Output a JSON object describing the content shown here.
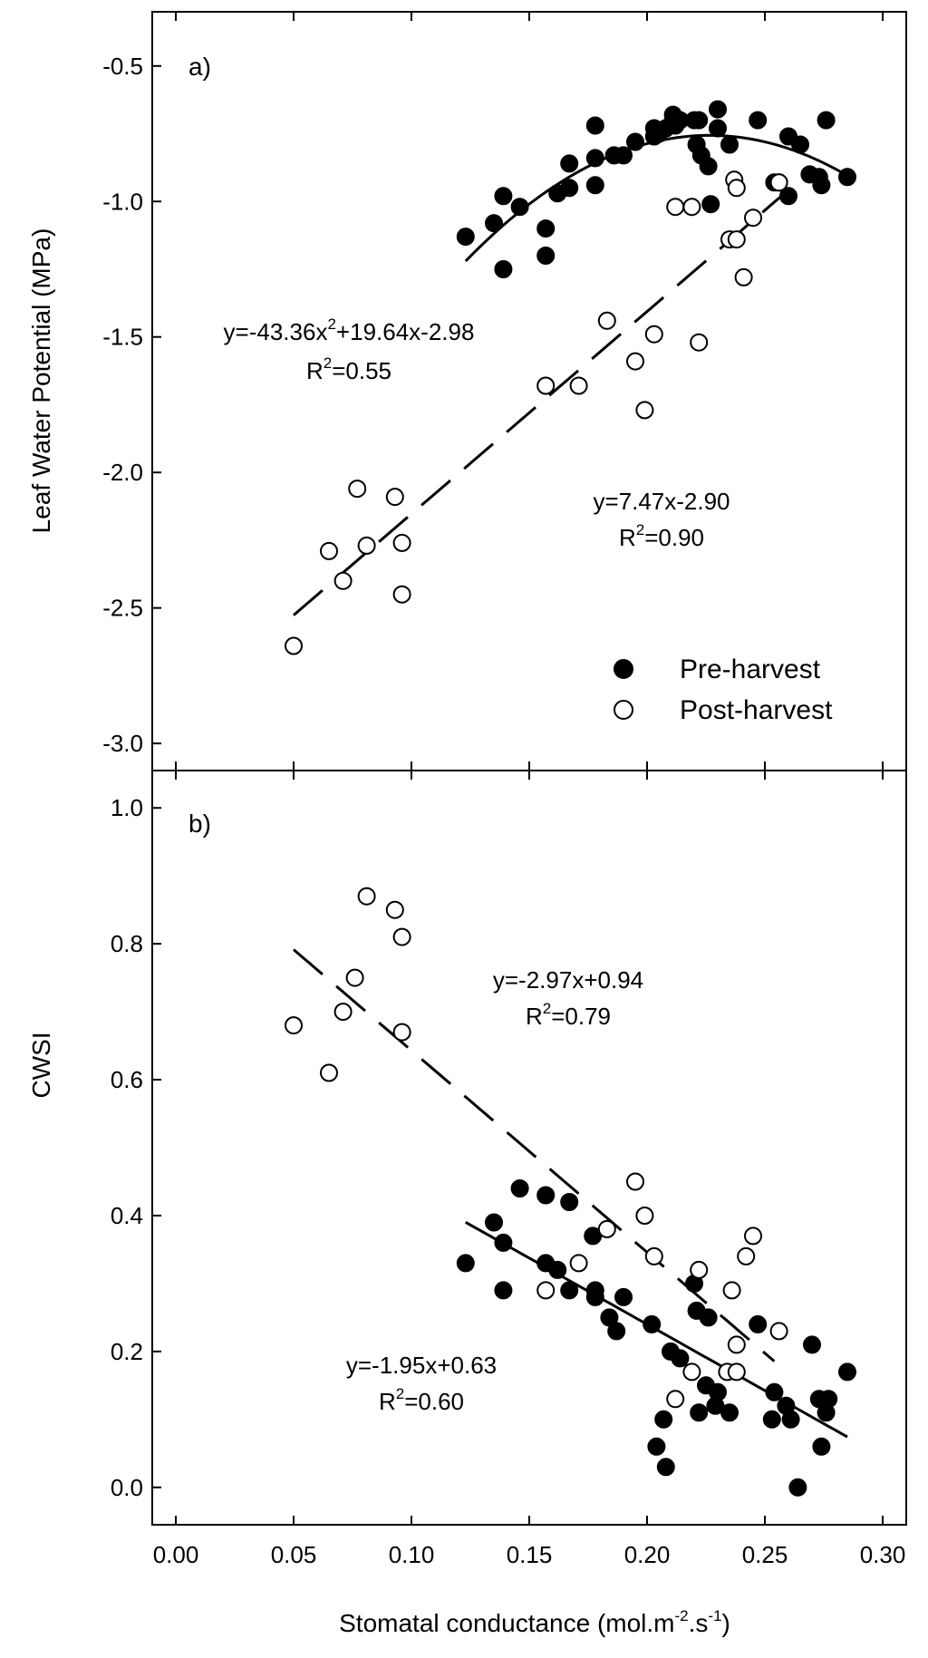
{
  "chart_data": [
    {
      "type": "scatter",
      "panel_label": "a)",
      "ylabel": "Leaf Water Potential (MPa)",
      "xlabel": "",
      "xlim": [
        -0.01,
        0.31
      ],
      "ylim": [
        -3.1,
        -0.3
      ],
      "y_reversed": true,
      "yticks": [
        -0.5,
        -1.0,
        -1.5,
        -2.0,
        -2.5,
        -3.0
      ],
      "ytick_labels": [
        "-0.5",
        "-1.0",
        "-1.5",
        "-2.0",
        "-2.5",
        "-3.0"
      ],
      "legend": {
        "position": "bottom-right",
        "entries": [
          {
            "label": "Pre-harvest",
            "marker": "filled-circle"
          },
          {
            "label": "Post-harvest",
            "marker": "open-circle"
          }
        ]
      },
      "series": [
        {
          "name": "Pre-harvest",
          "marker": "filled",
          "points": [
            [
              0.123,
              -1.13
            ],
            [
              0.135,
              -1.08
            ],
            [
              0.139,
              -0.98
            ],
            [
              0.139,
              -1.25
            ],
            [
              0.146,
              -1.02
            ],
            [
              0.157,
              -1.1
            ],
            [
              0.157,
              -1.2
            ],
            [
              0.162,
              -0.97
            ],
            [
              0.167,
              -0.95
            ],
            [
              0.167,
              -0.86
            ],
            [
              0.178,
              -0.94
            ],
            [
              0.178,
              -0.84
            ],
            [
              0.178,
              -0.72
            ],
            [
              0.186,
              -0.83
            ],
            [
              0.19,
              -0.83
            ],
            [
              0.195,
              -0.78
            ],
            [
              0.203,
              -0.76
            ],
            [
              0.203,
              -0.73
            ],
            [
              0.205,
              -0.75
            ],
            [
              0.208,
              -0.73
            ],
            [
              0.211,
              -0.68
            ],
            [
              0.211,
              -0.7
            ],
            [
              0.212,
              -0.72
            ],
            [
              0.214,
              -0.7
            ],
            [
              0.22,
              -0.7
            ],
            [
              0.221,
              -0.79
            ],
            [
              0.222,
              -0.7
            ],
            [
              0.223,
              -0.83
            ],
            [
              0.226,
              -0.87
            ],
            [
              0.227,
              -1.01
            ],
            [
              0.23,
              -0.66
            ],
            [
              0.23,
              -0.73
            ],
            [
              0.235,
              -0.79
            ],
            [
              0.247,
              -0.7
            ],
            [
              0.254,
              -0.93
            ],
            [
              0.256,
              -0.93
            ],
            [
              0.26,
              -0.98
            ],
            [
              0.26,
              -0.76
            ],
            [
              0.265,
              -0.79
            ],
            [
              0.269,
              -0.9
            ],
            [
              0.273,
              -0.91
            ],
            [
              0.274,
              -0.94
            ],
            [
              0.276,
              -0.7
            ],
            [
              0.285,
              -0.91
            ]
          ]
        },
        {
          "name": "Post-harvest",
          "marker": "open",
          "points": [
            [
              0.05,
              -2.64
            ],
            [
              0.065,
              -2.29
            ],
            [
              0.071,
              -2.4
            ],
            [
              0.077,
              -2.06
            ],
            [
              0.081,
              -2.27
            ],
            [
              0.093,
              -2.09
            ],
            [
              0.096,
              -2.26
            ],
            [
              0.096,
              -2.45
            ],
            [
              0.157,
              -1.68
            ],
            [
              0.171,
              -1.68
            ],
            [
              0.183,
              -1.44
            ],
            [
              0.195,
              -1.59
            ],
            [
              0.199,
              -1.77
            ],
            [
              0.203,
              -1.49
            ],
            [
              0.212,
              -1.02
            ],
            [
              0.219,
              -1.02
            ],
            [
              0.222,
              -1.52
            ],
            [
              0.235,
              -1.14
            ],
            [
              0.237,
              -0.92
            ],
            [
              0.238,
              -0.95
            ],
            [
              0.238,
              -1.14
            ],
            [
              0.241,
              -1.28
            ],
            [
              0.245,
              -1.06
            ],
            [
              0.256,
              -0.93
            ]
          ]
        }
      ],
      "fits": [
        {
          "name": "Pre-harvest fit",
          "type": "quadratic",
          "coef": [
            -43.36,
            19.64,
            -2.98
          ],
          "x_range": [
            0.123,
            0.285
          ],
          "style": "solid",
          "equation": "y=-43.36x",
          "equation_sup": "2",
          "equation_rest": "+19.64x-2.98",
          "r2_prefix": "R",
          "r2_sup": "2",
          "r2_rest": "=0.55"
        },
        {
          "name": "Post-harvest fit",
          "type": "linear",
          "coef": [
            7.47,
            -2.9
          ],
          "x_range": [
            0.05,
            0.257
          ],
          "style": "dashed",
          "equation": "y=7.47x-2.90",
          "r2_prefix": "R",
          "r2_sup": "2",
          "r2_rest": "=0.90"
        }
      ]
    },
    {
      "type": "scatter",
      "panel_label": "b)",
      "ylabel": "CWSI",
      "xlabel_main": "Stomatal conductance (mol.m",
      "xlabel_sup1": "-2",
      "xlabel_mid": ".s",
      "xlabel_sup2": "-1",
      "xlabel_end": ")",
      "xlim": [
        -0.01,
        0.31
      ],
      "ylim": [
        -0.055,
        1.055
      ],
      "xticks": [
        0.0,
        0.05,
        0.1,
        0.15,
        0.2,
        0.25,
        0.3
      ],
      "xtick_labels": [
        "0.00",
        "0.05",
        "0.10",
        "0.15",
        "0.20",
        "0.25",
        "0.30"
      ],
      "yticks": [
        0.0,
        0.2,
        0.4,
        0.6,
        0.8,
        1.0
      ],
      "ytick_labels": [
        "0.0",
        "0.2",
        "0.4",
        "0.6",
        "0.8",
        "1.0"
      ],
      "series": [
        {
          "name": "Pre-harvest",
          "marker": "filled",
          "points": [
            [
              0.123,
              0.33
            ],
            [
              0.135,
              0.39
            ],
            [
              0.139,
              0.36
            ],
            [
              0.139,
              0.29
            ],
            [
              0.146,
              0.44
            ],
            [
              0.157,
              0.43
            ],
            [
              0.157,
              0.33
            ],
            [
              0.162,
              0.32
            ],
            [
              0.167,
              0.42
            ],
            [
              0.167,
              0.29
            ],
            [
              0.177,
              0.37
            ],
            [
              0.178,
              0.29
            ],
            [
              0.178,
              0.28
            ],
            [
              0.184,
              0.25
            ],
            [
              0.187,
              0.23
            ],
            [
              0.19,
              0.28
            ],
            [
              0.202,
              0.24
            ],
            [
              0.204,
              0.06
            ],
            [
              0.207,
              0.1
            ],
            [
              0.208,
              0.03
            ],
            [
              0.21,
              0.2
            ],
            [
              0.214,
              0.19
            ],
            [
              0.22,
              0.3
            ],
            [
              0.221,
              0.26
            ],
            [
              0.222,
              0.11
            ],
            [
              0.225,
              0.15
            ],
            [
              0.226,
              0.25
            ],
            [
              0.229,
              0.12
            ],
            [
              0.23,
              0.14
            ],
            [
              0.235,
              0.11
            ],
            [
              0.247,
              0.24
            ],
            [
              0.253,
              0.1
            ],
            [
              0.254,
              0.14
            ],
            [
              0.259,
              0.12
            ],
            [
              0.261,
              0.1
            ],
            [
              0.264,
              0.0
            ],
            [
              0.27,
              0.21
            ],
            [
              0.273,
              0.13
            ],
            [
              0.274,
              0.06
            ],
            [
              0.276,
              0.11
            ],
            [
              0.277,
              0.13
            ],
            [
              0.285,
              0.17
            ]
          ]
        },
        {
          "name": "Post-harvest",
          "marker": "open",
          "points": [
            [
              0.05,
              0.68
            ],
            [
              0.065,
              0.61
            ],
            [
              0.071,
              0.7
            ],
            [
              0.076,
              0.75
            ],
            [
              0.081,
              0.87
            ],
            [
              0.093,
              0.85
            ],
            [
              0.096,
              0.81
            ],
            [
              0.096,
              0.67
            ],
            [
              0.157,
              0.29
            ],
            [
              0.171,
              0.33
            ],
            [
              0.183,
              0.38
            ],
            [
              0.195,
              0.45
            ],
            [
              0.199,
              0.4
            ],
            [
              0.203,
              0.34
            ],
            [
              0.212,
              0.13
            ],
            [
              0.219,
              0.17
            ],
            [
              0.222,
              0.32
            ],
            [
              0.234,
              0.17
            ],
            [
              0.236,
              0.29
            ],
            [
              0.238,
              0.21
            ],
            [
              0.238,
              0.17
            ],
            [
              0.242,
              0.34
            ],
            [
              0.245,
              0.37
            ],
            [
              0.256,
              0.23
            ]
          ]
        }
      ],
      "fits": [
        {
          "name": "Pre-harvest fit",
          "type": "linear",
          "coef": [
            -1.95,
            0.63
          ],
          "x_range": [
            0.123,
            0.285
          ],
          "style": "solid",
          "equation": "y=-1.95x+0.63",
          "r2_prefix": "R",
          "r2_sup": "2",
          "r2_rest": "=0.60"
        },
        {
          "name": "Post-harvest fit",
          "type": "linear",
          "coef": [
            -2.97,
            0.94
          ],
          "x_range": [
            0.05,
            0.254
          ],
          "style": "dashed",
          "equation": "y=-2.97x+0.94",
          "r2_prefix": "R",
          "r2_sup": "2",
          "r2_rest": "=0.79"
        }
      ]
    }
  ]
}
